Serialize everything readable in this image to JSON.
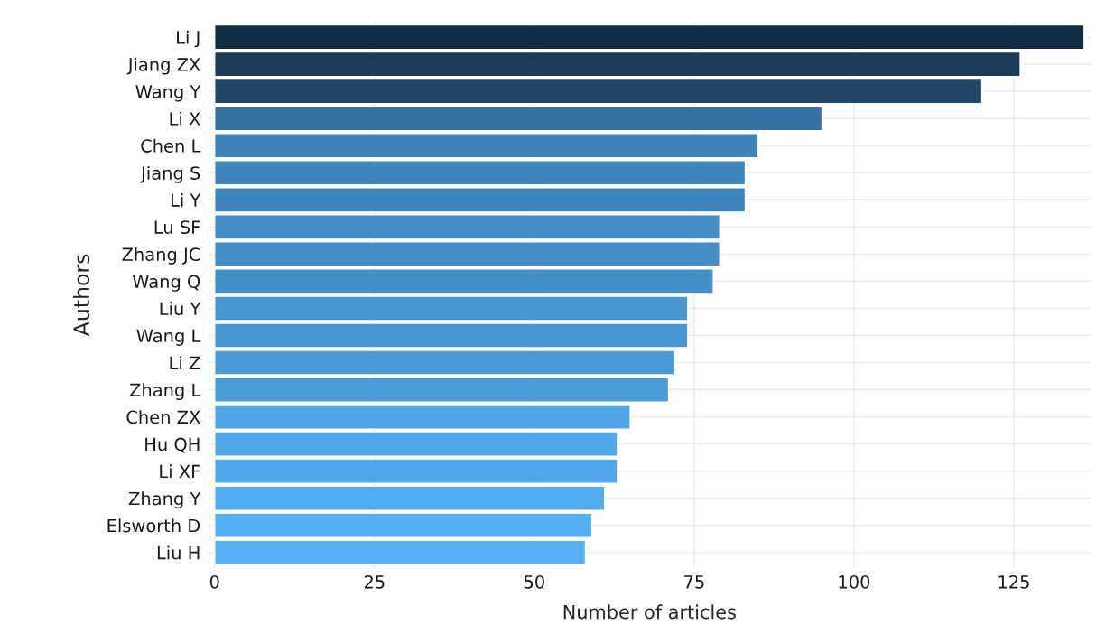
{
  "chart_data": {
    "type": "bar",
    "orientation": "horizontal",
    "xlabel": "Number of articles",
    "ylabel": "Authors",
    "categories": [
      "Li J",
      "Jiang ZX",
      "Wang Y",
      "Li X",
      "Chen L",
      "Jiang S",
      "Li Y",
      "Lu SF",
      "Zhang JC",
      "Wang Q",
      "Liu Y",
      "Wang L",
      "Li Z",
      "Zhang L",
      "Chen ZX",
      "Hu QH",
      "Li XF",
      "Zhang Y",
      "Elsworth D",
      "Liu H"
    ],
    "values": [
      136,
      126,
      120,
      95,
      85,
      83,
      83,
      79,
      79,
      78,
      74,
      74,
      72,
      71,
      65,
      63,
      63,
      61,
      59,
      58
    ],
    "colors": [
      "#132b43",
      "#1c3c5a",
      "#214768",
      "#3671a2",
      "#3f83b9",
      "#4086bd",
      "#4086bd",
      "#448dc7",
      "#448dc7",
      "#458fc9",
      "#4896d2",
      "#4896d2",
      "#4a99d7",
      "#4b9bd9",
      "#50a5e7",
      "#52a8eb",
      "#52a8eb",
      "#53acf0",
      "#55aff5",
      "#56b1f7"
    ],
    "xlim": [
      -1,
      137
    ],
    "xticks": [
      0,
      25,
      50,
      75,
      100,
      125
    ],
    "grid": true,
    "legend": false
  }
}
